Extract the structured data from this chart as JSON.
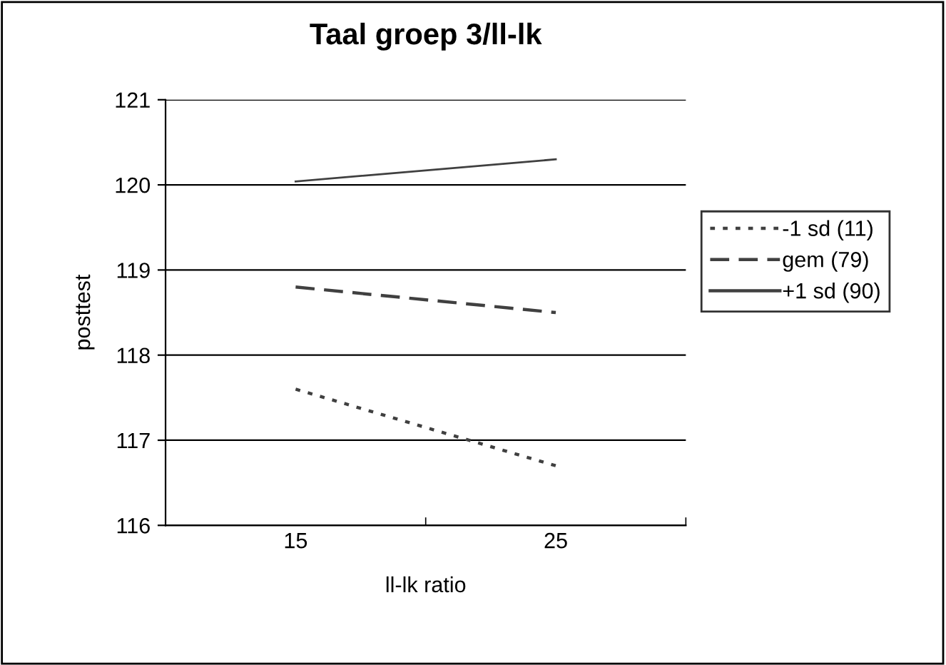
{
  "chart_data": {
    "type": "line",
    "title": "Taal groep 3/ll-lk",
    "xlabel": "ll-lk ratio",
    "ylabel": "posttest",
    "categories": [
      "15",
      "25"
    ],
    "series": [
      {
        "name": "-1 sd (11)",
        "color": "#404040",
        "line_style": "dotted",
        "values": [
          117.6,
          116.7
        ]
      },
      {
        "name": "gem (79)",
        "color": "#404040",
        "line_style": "dashed",
        "values": [
          118.8,
          118.5
        ]
      },
      {
        "name": "+1 sd (90)",
        "color": "#404040",
        "line_style": "solid",
        "values": [
          120.04,
          120.3
        ]
      }
    ],
    "ylim": [
      116,
      121
    ],
    "yticks": [
      116,
      117,
      118,
      119,
      120,
      121
    ],
    "grid": "y",
    "legend": "right",
    "marker": "none"
  }
}
